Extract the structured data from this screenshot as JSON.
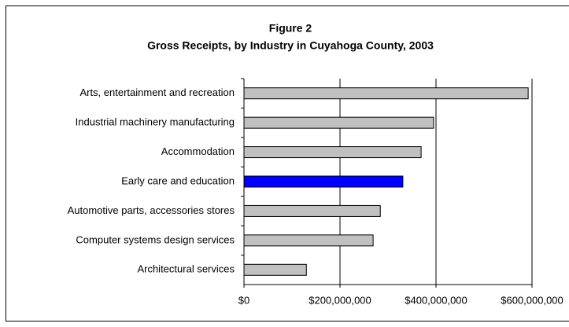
{
  "chart_data": {
    "type": "barh",
    "title": "Figure 2",
    "subtitle": "Gross Receipts, by Industry in Cuyahoga County, 2003",
    "categories": [
      "Arts, entertainment and recreation",
      "Industrial machinery manufacturing",
      "Accommodation",
      "Early care and education",
      "Automotive parts, accessories stores",
      "Computer systems design services",
      "Architectural services"
    ],
    "values": [
      592000000,
      395000000,
      369000000,
      331000000,
      284000000,
      269000000,
      130000000
    ],
    "colors": [
      "#c0c0c0",
      "#c0c0c0",
      "#c0c0c0",
      "#0000ff",
      "#c0c0c0",
      "#c0c0c0",
      "#c0c0c0"
    ],
    "xlim": [
      0,
      600000000
    ],
    "xticks": [
      {
        "value": 0,
        "label": "$0"
      },
      {
        "value": 200000000,
        "label": "$200,000,000"
      },
      {
        "value": 400000000,
        "label": "$400,000,000"
      },
      {
        "value": 600000000,
        "label": "$600,000,000"
      }
    ],
    "grid": true
  }
}
